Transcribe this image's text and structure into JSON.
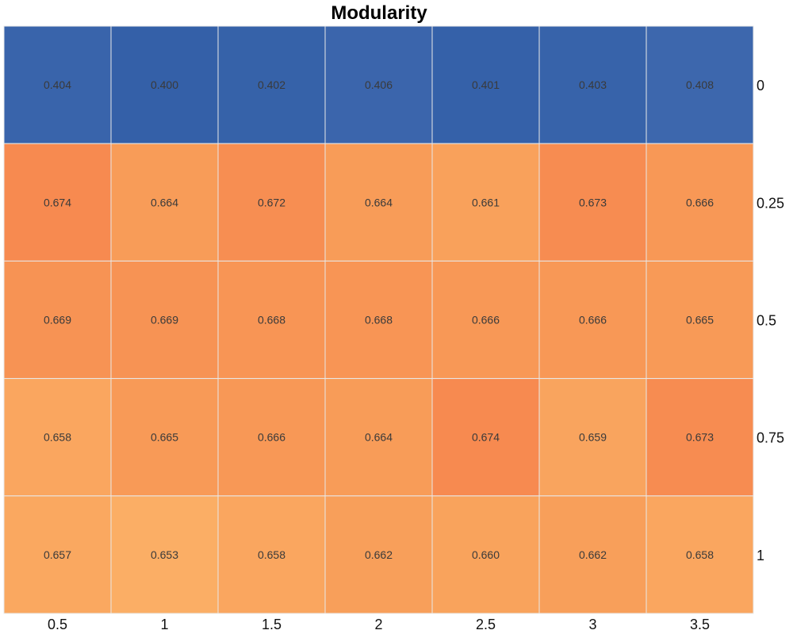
{
  "chart_data": {
    "type": "heatmap",
    "title": "Modularity",
    "x": [
      "0.5",
      "1",
      "1.5",
      "2",
      "2.5",
      "3",
      "3.5"
    ],
    "y": [
      "0",
      "0.25",
      "0.5",
      "0.75",
      "1"
    ],
    "values": [
      [
        0.404,
        0.4,
        0.402,
        0.406,
        0.401,
        0.403,
        0.408
      ],
      [
        0.674,
        0.664,
        0.672,
        0.664,
        0.661,
        0.673,
        0.666
      ],
      [
        0.669,
        0.669,
        0.668,
        0.668,
        0.666,
        0.666,
        0.665
      ],
      [
        0.658,
        0.665,
        0.666,
        0.664,
        0.674,
        0.659,
        0.673
      ],
      [
        0.657,
        0.653,
        0.658,
        0.662,
        0.66,
        0.662,
        0.658
      ]
    ],
    "labels": [
      [
        "0.404",
        "0.400",
        "0.402",
        "0.406",
        "0.401",
        "0.403",
        "0.408"
      ],
      [
        "0.674",
        "0.664",
        "0.672",
        "0.664",
        "0.661",
        "0.673",
        "0.666"
      ],
      [
        "0.669",
        "0.669",
        "0.668",
        "0.668",
        "0.666",
        "0.666",
        "0.665"
      ],
      [
        "0.658",
        "0.665",
        "0.666",
        "0.664",
        "0.674",
        "0.659",
        "0.673"
      ],
      [
        "0.657",
        "0.653",
        "0.658",
        "0.662",
        "0.660",
        "0.662",
        "0.658"
      ]
    ],
    "xlabel": "",
    "ylabel": "",
    "y_axis_side": "right",
    "x_axis_side": "bottom",
    "legend": "none",
    "grid": false,
    "colors": {
      "low": "#3460a8",
      "low_alt": "#3d67ad",
      "mid_low": "#fbae65",
      "mid": "#f89d58",
      "high": "#f78a50",
      "cell_border": "#e8e8e8"
    }
  }
}
